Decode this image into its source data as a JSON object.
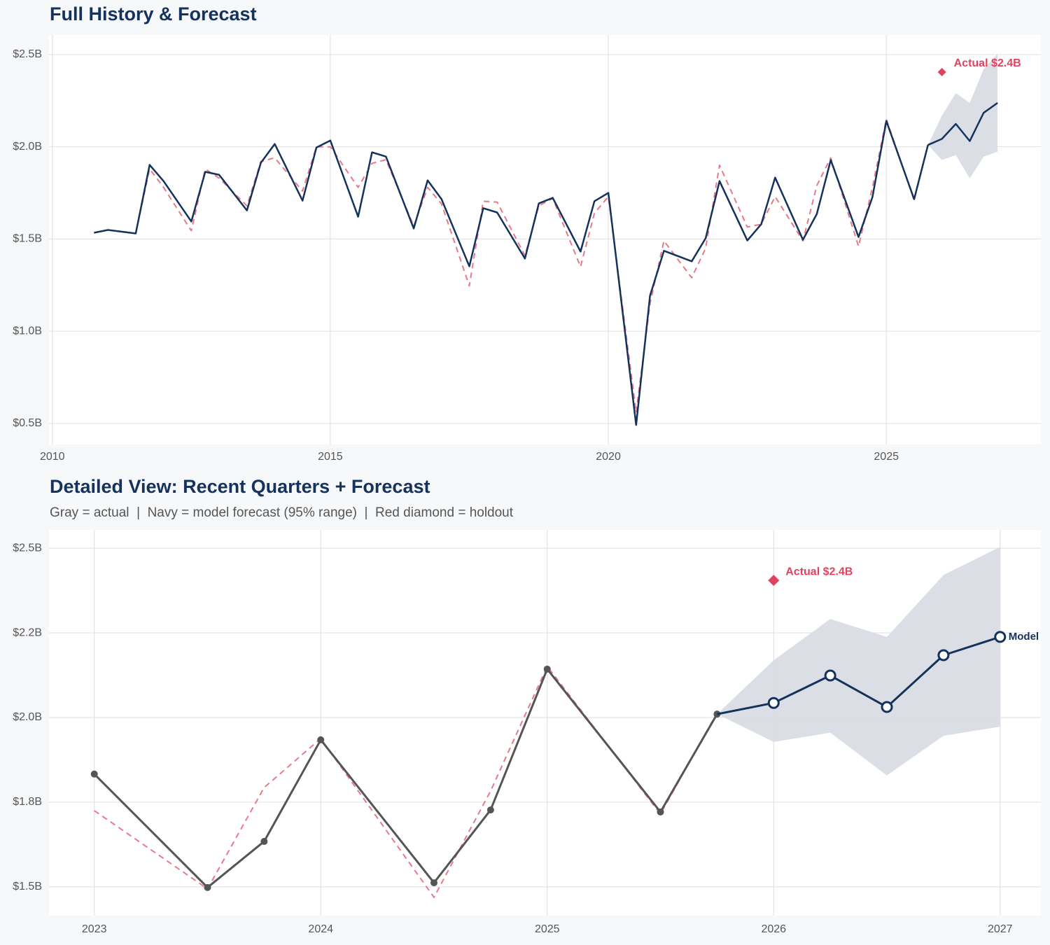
{
  "chart_data": [
    {
      "type": "line",
      "title": "Full History & Forecast",
      "xlim": [
        2009.94,
        2027.78
      ],
      "xticks": [
        2010,
        2015,
        2020,
        2025
      ],
      "ylim": [
        0.386,
        2.606
      ],
      "yticks": [
        {
          "value": 0.5,
          "label": "$0.5B"
        },
        {
          "value": 1.0,
          "label": "$1.0B"
        },
        {
          "value": 1.5,
          "label": "$1.5B"
        },
        {
          "value": 2.0,
          "label": "$2.0B"
        },
        {
          "value": 2.5,
          "label": "$2.5B"
        }
      ],
      "grid": true,
      "band": {
        "color": "#d9dde4",
        "x": [
          2025.75,
          2026.0,
          2026.25,
          2026.5,
          2026.75,
          2027.0
        ],
        "lower": [
          2.01,
          1.928,
          1.955,
          1.829,
          1.946,
          1.973
        ],
        "upper": [
          2.01,
          2.169,
          2.291,
          2.238,
          2.421,
          2.504
        ]
      },
      "series": [
        {
          "color": "#e8798b",
          "dashed": true,
          "marker": "none",
          "x": [
            2010.75,
            2011.0,
            2011.5,
            2011.75,
            2012.0,
            2012.5,
            2012.75,
            2013.0,
            2013.5,
            2013.75,
            2014.0,
            2014.5,
            2014.75,
            2015.0,
            2015.5,
            2015.75,
            2016.0,
            2016.5,
            2016.75,
            2017.0,
            2017.5,
            2017.75,
            2018.0,
            2018.5,
            2018.75,
            2019.0,
            2019.5,
            2019.75,
            2020.0,
            2020.5,
            2020.75,
            2021.0,
            2021.5,
            2021.75,
            2022.0,
            2022.5,
            2022.75,
            2023.0,
            2023.5,
            2023.75,
            2024.0,
            2024.5,
            2024.75,
            2025.0,
            2025.5,
            2025.75
          ],
          "values": [
            null,
            null,
            1.53,
            1.88,
            1.78,
            1.545,
            1.88,
            1.83,
            1.68,
            1.92,
            1.94,
            1.76,
            2.0,
            2.0,
            1.78,
            1.91,
            1.93,
            1.57,
            1.78,
            1.69,
            1.246,
            1.705,
            1.7,
            1.41,
            1.68,
            1.72,
            1.35,
            1.64,
            1.73,
            0.56,
            1.15,
            1.49,
            1.29,
            1.45,
            1.9,
            1.565,
            1.58,
            1.73,
            1.49,
            1.79,
            1.94,
            1.46,
            1.78,
            2.15,
            1.71,
            2.01
          ]
        },
        {
          "color": "#14325c",
          "dashed": false,
          "marker": "none",
          "x": [
            2010.75,
            2011.0,
            2011.5,
            2011.75,
            2012.0,
            2012.5,
            2012.75,
            2013.0,
            2013.5,
            2013.75,
            2014.0,
            2014.5,
            2014.75,
            2015.0,
            2015.5,
            2015.75,
            2016.0,
            2016.5,
            2016.75,
            2017.0,
            2017.5,
            2017.75,
            2018.0,
            2018.5,
            2018.75,
            2019.0,
            2019.5,
            2019.75,
            2020.0,
            2020.5,
            2020.75,
            2021.0,
            2021.5,
            2021.75,
            2022.0,
            2022.5,
            2022.75,
            2023.0,
            2023.5,
            2023.75,
            2024.0,
            2024.5,
            2024.75,
            2025.0,
            2025.5,
            2025.75
          ],
          "values": [
            1.534,
            1.549,
            1.53,
            1.902,
            1.814,
            1.595,
            1.864,
            1.848,
            1.655,
            1.913,
            2.015,
            1.708,
            1.996,
            2.034,
            1.621,
            1.97,
            1.947,
            1.557,
            1.818,
            1.716,
            1.352,
            1.667,
            1.644,
            1.394,
            1.693,
            1.723,
            1.432,
            1.705,
            1.75,
            0.492,
            1.193,
            1.436,
            1.379,
            1.504,
            1.814,
            1.492,
            1.58,
            1.833,
            1.496,
            1.636,
            1.928,
            1.511,
            1.727,
            2.14,
            1.716,
            2.011
          ]
        },
        {
          "color": "#14325c",
          "dashed": false,
          "marker": "none",
          "x": [
            2025.75,
            2026.0,
            2026.25,
            2026.5,
            2026.75,
            2027.0
          ],
          "values": [
            2.01,
            2.043,
            2.124,
            2.031,
            2.184,
            2.238
          ]
        },
        {
          "color": "#e0435f",
          "marker": "diamond",
          "x": [
            2026.0
          ],
          "values": [
            2.405
          ],
          "value_labels": [
            "Actual $2.4B"
          ]
        }
      ]
    },
    {
      "type": "line",
      "title": "Detailed View: Recent Quarters + Forecast",
      "subtitle": "Gray = actual  |  Navy = model forecast (95% range)  |  Red diamond = holdout",
      "xlim": [
        2022.8,
        2027.18
      ],
      "xticks": [
        2023,
        2024,
        2025,
        2026,
        2027
      ],
      "ylim": [
        1.415,
        2.554
      ],
      "yticks": [
        {
          "value": 1.5,
          "label": "$1.5B"
        },
        {
          "value": 1.75,
          "label": "$1.8B"
        },
        {
          "value": 2.0,
          "label": "$2.0B"
        },
        {
          "value": 2.25,
          "label": "$2.2B"
        },
        {
          "value": 2.5,
          "label": "$2.5B"
        }
      ],
      "grid": true,
      "band": {
        "color": "#d9dde4",
        "x": [
          2025.75,
          2026.0,
          2026.25,
          2026.5,
          2026.75,
          2027.0
        ],
        "lower": [
          2.01,
          1.928,
          1.955,
          1.829,
          1.946,
          1.973
        ],
        "upper": [
          2.01,
          2.169,
          2.291,
          2.238,
          2.421,
          2.504
        ]
      },
      "series": [
        {
          "color": "#e8798b",
          "dashed": true,
          "marker": "none",
          "x": [
            2023.0,
            2023.5,
            2023.75,
            2024.0,
            2024.5,
            2024.75,
            2025.0,
            2025.5,
            2025.75
          ],
          "values": [
            1.725,
            1.494,
            1.793,
            1.938,
            1.469,
            1.783,
            2.151,
            1.715,
            2.014
          ]
        },
        {
          "color": "#555555",
          "dashed": false,
          "marker": "dot",
          "x": [
            2023.0,
            2023.5,
            2023.75,
            2024.0,
            2024.5,
            2024.75,
            2025.0,
            2025.5,
            2025.75
          ],
          "values": [
            1.833,
            1.498,
            1.634,
            1.934,
            1.512,
            1.727,
            2.143,
            1.721,
            2.01
          ]
        },
        {
          "color": "#14325c",
          "dashed": false,
          "marker": "hollow",
          "end_label": "Model",
          "x": [
            2025.75,
            2026.0,
            2026.25,
            2026.5,
            2026.75,
            2027.0
          ],
          "values": [
            2.01,
            2.043,
            2.124,
            2.031,
            2.184,
            2.238
          ]
        },
        {
          "color": "#e0435f",
          "marker": "diamond",
          "x": [
            2026.0
          ],
          "values": [
            2.405
          ],
          "value_labels": [
            "Actual $2.4B"
          ]
        }
      ]
    }
  ]
}
